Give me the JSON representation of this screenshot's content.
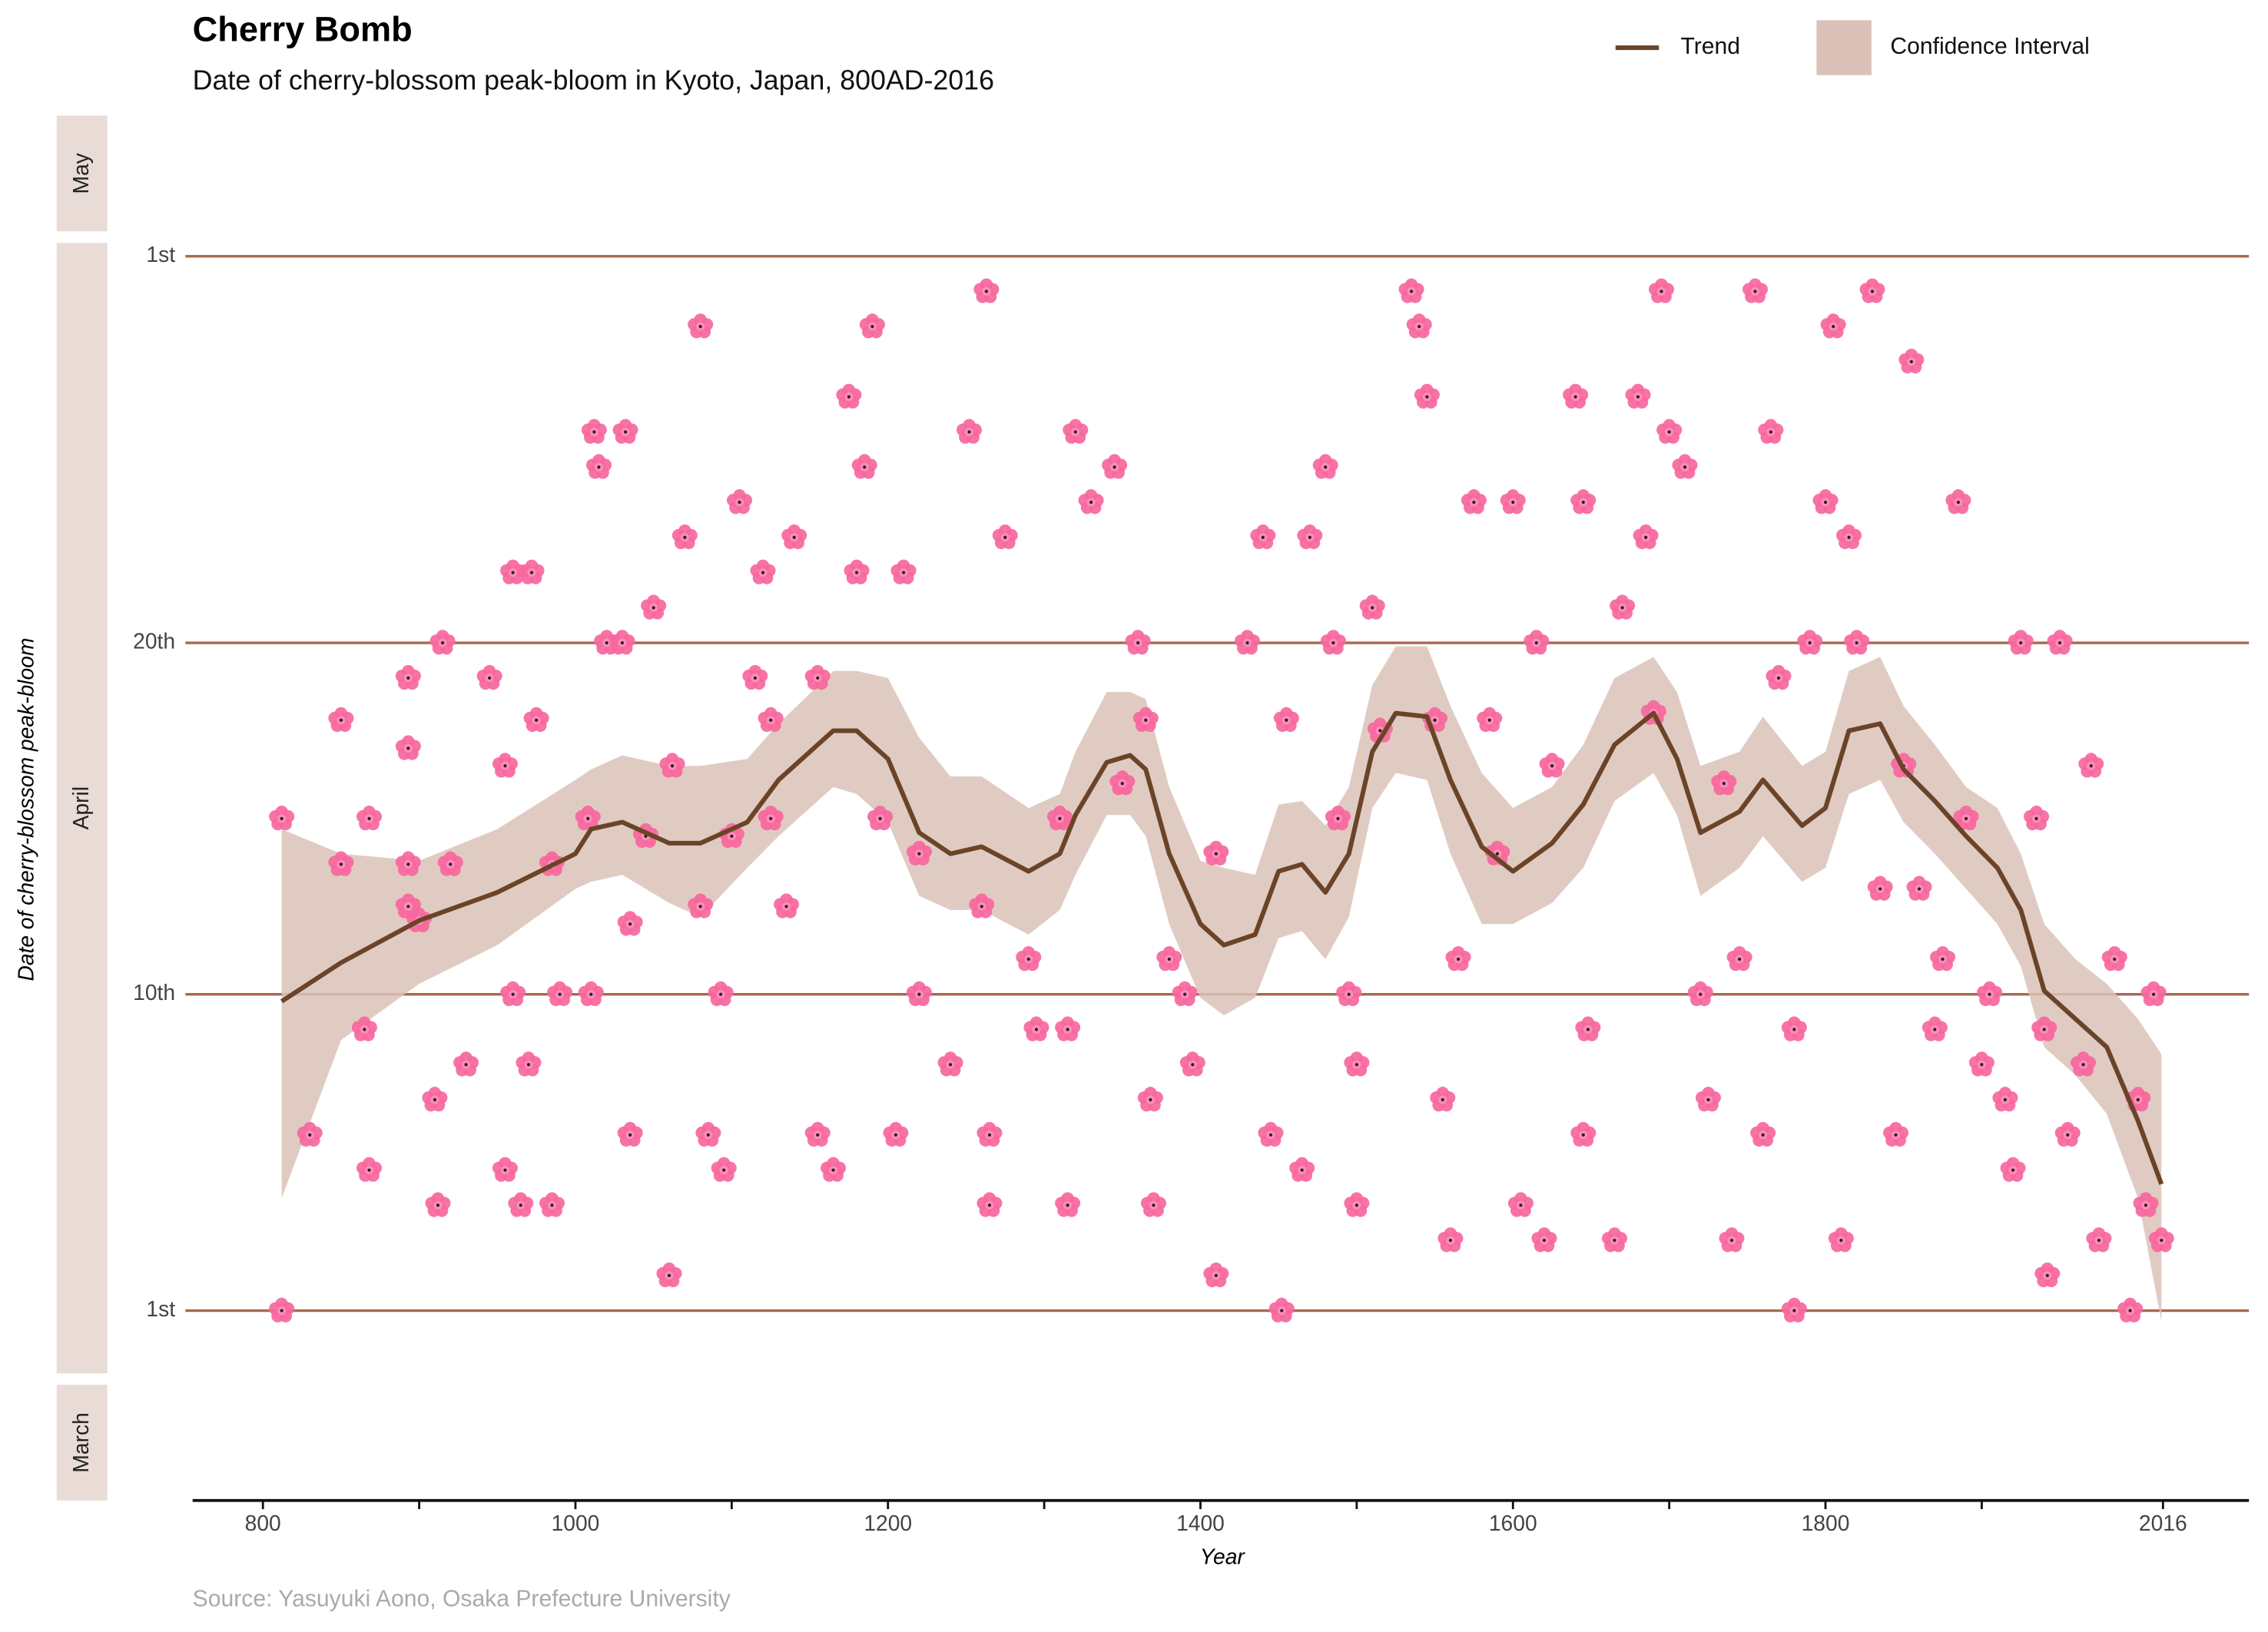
{
  "chart_data": {
    "type": "scatter",
    "title": "Cherry Bomb",
    "subtitle": "Date of cherry-blossom peak-bloom in Kyoto, Japan, 800AD-2016",
    "x_label": "Year",
    "y_label": "Date of cherry-blossom peak-bloom",
    "source": "Source: Yasuyuki Aono, Osaka Prefecture University",
    "months": [
      "May",
      "April",
      "March"
    ],
    "color": "#f7679d",
    "x": [
      812,
      812,
      830,
      850,
      850,
      865,
      868,
      868,
      893,
      893,
      893,
      893,
      900,
      910,
      912,
      915,
      920,
      930,
      945,
      955,
      955,
      960,
      960,
      965,
      970,
      972,
      975,
      985,
      985,
      990,
      1010,
      1008,
      1015,
      1020,
      1012,
      1030,
      1032,
      1035,
      1035,
      1045,
      1050,
      1060,
      1062,
      1070,
      1080,
      1080,
      1085,
      1093,
      1095,
      1100,
      1105,
      1115,
      1120,
      1125,
      1125,
      1135,
      1140,
      1155,
      1155,
      1165,
      1175,
      1180,
      1185,
      1190,
      1195,
      1205,
      1210,
      1220,
      1220,
      1263,
      1252,
      1240,
      1260,
      1265,
      1265,
      1275,
      1290,
      1295,
      1310,
      1320,
      1315,
      1315,
      1330,
      1345,
      1350,
      1360,
      1365,
      1368,
      1370,
      1380,
      1390,
      1395,
      1410,
      1410,
      1430,
      1440,
      1445,
      1452,
      1455,
      1465,
      1470,
      1480,
      1485,
      1488,
      1495,
      1500,
      1500,
      1510,
      1515,
      1535,
      1540,
      1545,
      1550,
      1555,
      1560,
      1565,
      1575,
      1585,
      1590,
      1600,
      1605,
      1615,
      1620,
      1625,
      1640,
      1645,
      1648,
      1645,
      1665,
      1670,
      1680,
      1685,
      1690,
      1695,
      1700,
      1710,
      1720,
      1725,
      1735,
      1740,
      1745,
      1755,
      1760,
      1765,
      1770,
      1780,
      1780,
      1790,
      1800,
      1805,
      1810,
      1815,
      1820,
      1830,
      1835,
      1845,
      1850,
      1855,
      1860,
      1870,
      1875,
      1885,
      1890,
      1900,
      1905,
      1915,
      1920,
      1925,
      1935,
      1940,
      1942,
      1950,
      1955,
      1965,
      1970,
      1975,
      1985,
      1995,
      2000,
      2005,
      2010,
      2015
    ],
    "values": [
      15,
      1,
      6,
      13.7,
      17.8,
      9,
      5,
      15,
      17,
      13.7,
      12.5,
      19,
      12.1,
      7,
      4,
      20,
      13.7,
      8,
      19,
      5,
      16.5,
      22,
      10,
      4,
      8,
      22,
      17.8,
      13.7,
      4,
      10,
      10,
      15,
      25,
      20,
      26,
      20,
      26,
      6,
      12,
      14.5,
      21,
      2,
      16.5,
      23,
      12.5,
      29,
      6,
      10,
      5,
      14.5,
      24,
      19,
      22,
      17.8,
      15,
      12.5,
      23,
      19,
      6,
      5,
      27,
      22,
      25,
      29,
      15,
      6,
      22,
      14,
      10,
      30,
      26,
      8,
      12.5,
      4,
      6,
      23,
      11,
      9,
      15,
      26,
      9,
      4,
      24,
      25,
      16,
      20,
      17.8,
      7,
      4,
      11,
      10,
      8,
      2,
      14,
      20,
      23,
      6,
      1,
      17.8,
      5,
      23,
      25,
      20,
      15,
      10,
      4,
      8,
      21,
      17.5,
      30,
      29,
      27,
      17.8,
      7,
      3,
      11,
      24,
      17.8,
      14,
      24,
      4,
      20,
      3,
      16.5,
      27,
      24,
      9,
      6,
      3,
      21,
      27,
      23,
      18,
      30,
      26,
      25,
      10,
      7,
      16,
      3,
      11,
      30,
      6,
      26,
      19,
      1,
      9,
      20,
      24,
      29,
      3,
      23,
      20,
      30,
      13,
      6,
      16.5,
      28,
      13,
      9,
      11,
      24,
      15,
      8,
      10,
      7,
      5,
      20,
      15,
      9,
      2,
      20,
      6,
      8,
      16.5,
      3,
      11,
      1,
      7,
      4,
      10,
      3
    ],
    "xlim": [
      755,
      2071
    ],
    "xticks": [
      800,
      1000,
      1200,
      1400,
      1600,
      1800,
      2016
    ],
    "xticks_minor": [
      900,
      1100,
      1300,
      1500,
      1700,
      1900
    ],
    "ylim": [
      -4.4,
      35
    ],
    "yticks": [
      {
        "value": 1,
        "label": "1st"
      },
      {
        "value": 10,
        "label": "10th"
      },
      {
        "value": 20,
        "label": "20th"
      },
      {
        "value": 31,
        "label": "1st"
      }
    ],
    "grid": true,
    "trend": {
      "name": "Trend",
      "color": "#6b4428",
      "x": [
        812,
        850,
        900,
        950,
        1000,
        1010,
        1030,
        1060,
        1080,
        1110,
        1130,
        1165,
        1180,
        1200,
        1220,
        1240,
        1260,
        1290,
        1310,
        1320,
        1340,
        1355,
        1365,
        1380,
        1400,
        1415,
        1435,
        1450,
        1465,
        1480,
        1495,
        1510,
        1525,
        1545,
        1560,
        1580,
        1600,
        1625,
        1645,
        1665,
        1690,
        1705,
        1720,
        1745,
        1760,
        1785,
        1800,
        1815,
        1835,
        1850,
        1870,
        1890,
        1910,
        1925,
        1940,
        1960,
        1980,
        2000,
        2015
      ],
      "values": [
        9.8,
        10.9,
        12.1,
        12.9,
        14.0,
        14.7,
        14.9,
        14.3,
        14.3,
        14.9,
        16.1,
        17.5,
        17.5,
        16.7,
        14.6,
        14.0,
        14.2,
        13.5,
        14.0,
        15.1,
        16.6,
        16.8,
        16.4,
        14.0,
        12.0,
        11.4,
        11.7,
        13.5,
        13.7,
        12.9,
        14.0,
        16.9,
        18.0,
        17.9,
        16.1,
        14.2,
        13.5,
        14.3,
        15.4,
        17.1,
        18.0,
        16.7,
        14.6,
        15.2,
        16.1,
        14.8,
        15.3,
        17.5,
        17.7,
        16.4,
        15.5,
        14.5,
        13.6,
        12.4,
        10.1,
        9.3,
        8.5,
        6.4,
        4.6
      ]
    },
    "band": {
      "name": "Confidence Interval",
      "color": "#dbc2b8",
      "lower": [
        4.2,
        8.7,
        10.3,
        11.4,
        13.0,
        13.2,
        13.4,
        12.6,
        12.2,
        13.6,
        14.5,
        15.9,
        15.7,
        14.9,
        12.8,
        12.4,
        12.4,
        11.7,
        12.4,
        13.4,
        15.1,
        15.1,
        14.5,
        12.0,
        9.9,
        9.4,
        9.9,
        11.6,
        11.8,
        11.0,
        12.2,
        15.3,
        16.3,
        16.1,
        14.0,
        12.0,
        12.0,
        12.6,
        13.6,
        15.5,
        16.3,
        15.1,
        12.8,
        13.6,
        14.5,
        13.2,
        13.6,
        15.7,
        16.1,
        14.9,
        14.0,
        13.0,
        12.0,
        10.8,
        8.5,
        7.7,
        6.6,
        4.2,
        0.7
      ],
      "upper": [
        14.7,
        14.0,
        13.8,
        14.7,
        16.1,
        16.4,
        16.8,
        16.5,
        16.5,
        16.7,
        17.7,
        19.2,
        19.2,
        19.0,
        17.3,
        16.2,
        16.2,
        15.3,
        15.7,
        16.9,
        18.6,
        18.6,
        18.4,
        15.9,
        13.8,
        13.6,
        13.4,
        15.4,
        15.5,
        14.8,
        15.9,
        18.8,
        19.9,
        19.9,
        18.2,
        16.3,
        15.3,
        15.9,
        17.1,
        19.0,
        19.6,
        18.6,
        16.5,
        16.9,
        17.9,
        16.5,
        16.9,
        19.2,
        19.6,
        18.2,
        17.1,
        15.9,
        15.3,
        14.0,
        12.0,
        11.0,
        10.3,
        9.3,
        8.3
      ]
    }
  }
}
